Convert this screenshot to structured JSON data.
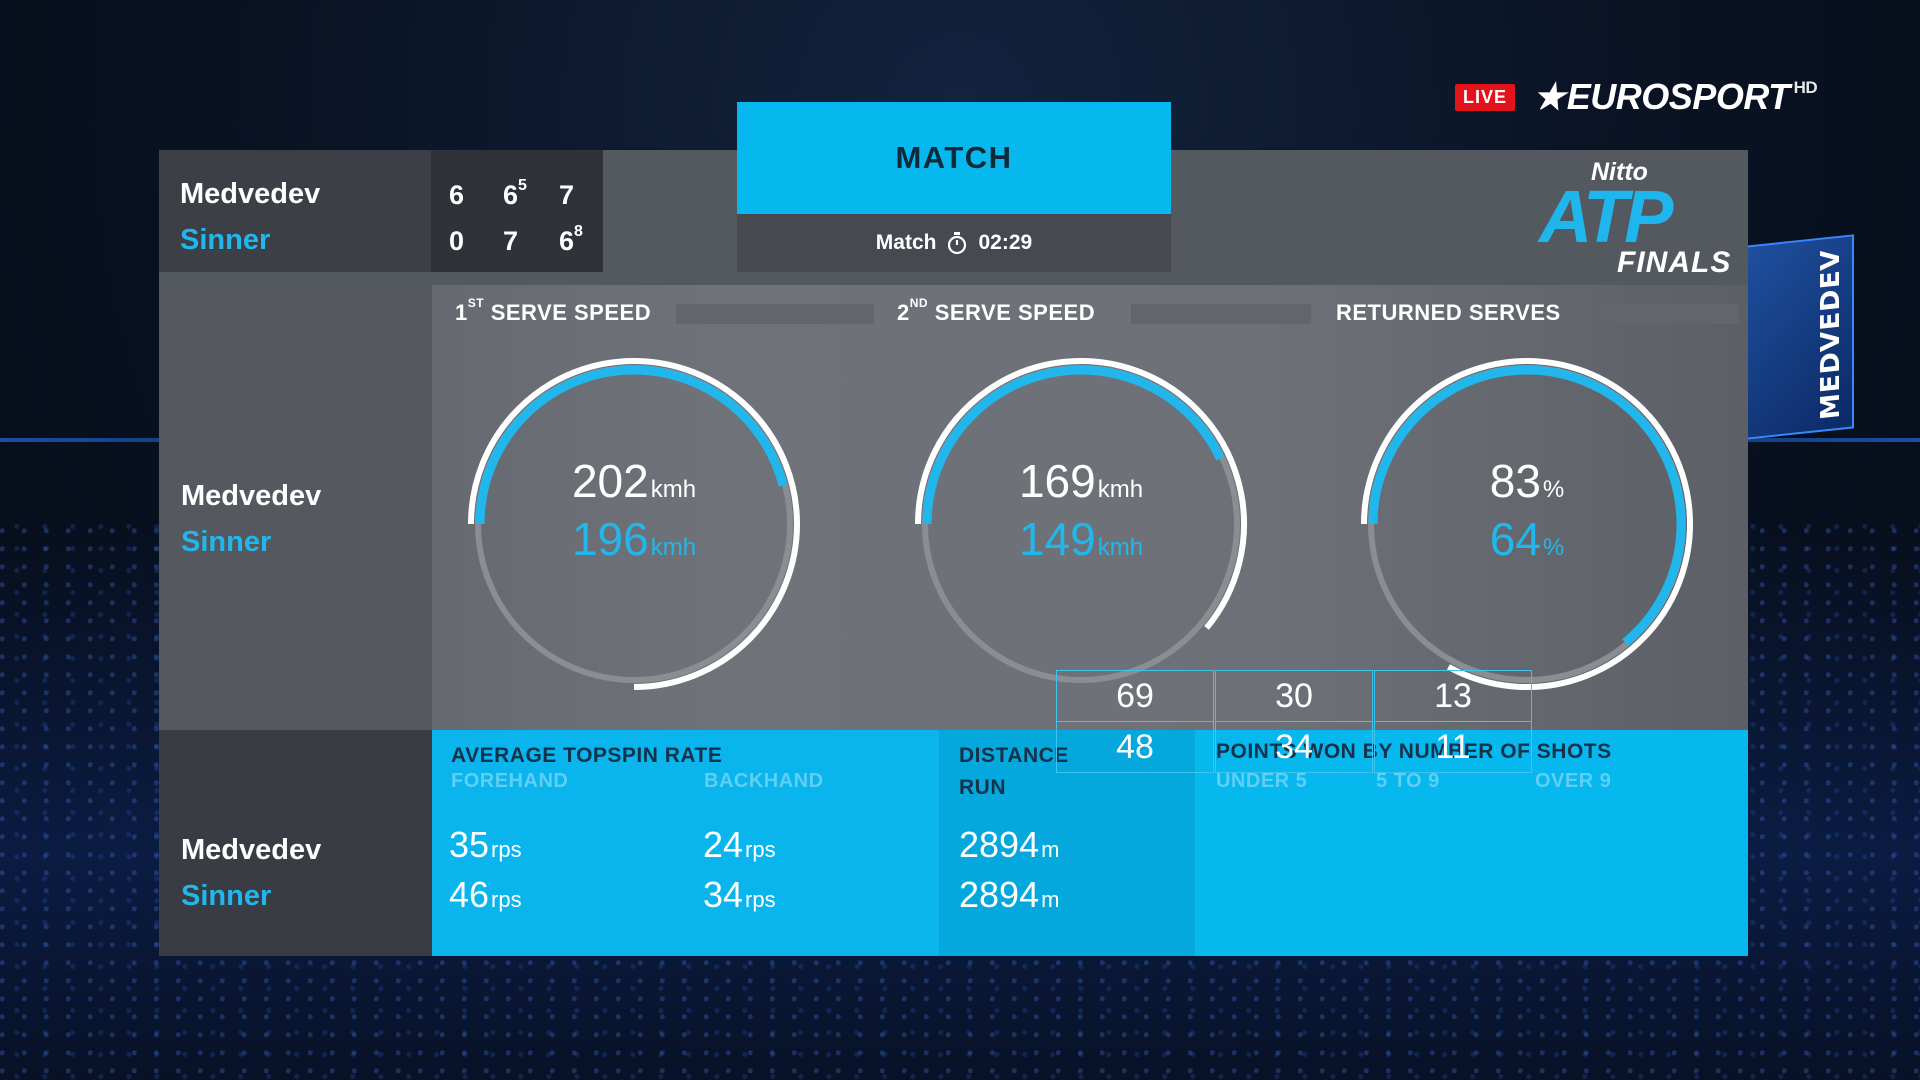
{
  "broadcaster": {
    "live_label": "LIVE",
    "brand": "EUROSPORT",
    "hd_label": "HD"
  },
  "background": {
    "video_screen_text": "MEDVEDEV"
  },
  "tournament": {
    "logo_top": "Nitto",
    "logo_main": "ATP",
    "logo_bottom": "FINALS"
  },
  "players": [
    {
      "name": "Medvedev",
      "sets": [
        "6",
        "6",
        "7"
      ],
      "tiebreaks": [
        "",
        "5",
        ""
      ]
    },
    {
      "name": "Sinner",
      "sets": [
        "0",
        "7",
        "6"
      ],
      "tiebreaks": [
        "",
        "",
        "8"
      ]
    }
  ],
  "match": {
    "tab_label": "MATCH",
    "sub_label": "Match",
    "clock_icon": "stopwatch-icon",
    "duration": "02:29"
  },
  "gauges": [
    {
      "title_prefix": "1",
      "title_sup": "ST",
      "title_rest": " SERVE SPEED",
      "p1_value": "202",
      "p1_unit": "kmh",
      "p2_value": "196",
      "p2_unit": "kmh",
      "p1_fraction": 0.75,
      "p2_fraction": 0.46
    },
    {
      "title_prefix": "2",
      "title_sup": "ND",
      "title_rest": " SERVE SPEED",
      "p1_value": "169",
      "p1_unit": "kmh",
      "p2_value": "149",
      "p2_unit": "kmh",
      "p1_fraction": 0.61,
      "p2_fraction": 0.43
    },
    {
      "title_prefix": "",
      "title_sup": "",
      "title_rest": "RETURNED SERVES",
      "p1_value": "83",
      "p1_unit": "%",
      "p2_value": "64",
      "p2_unit": "%",
      "p1_fraction": 0.83,
      "p2_fraction": 0.64
    }
  ],
  "topspin": {
    "title": "AVERAGE TOPSPIN RATE",
    "forehand_label": "FOREHAND",
    "backhand_label": "BACKHAND",
    "unit": "rps",
    "forehand": [
      "35",
      "46"
    ],
    "backhand": [
      "24",
      "34"
    ]
  },
  "distance": {
    "title_line1": "DISTANCE",
    "title_line2": "RUN",
    "unit": "m",
    "values": [
      "2894",
      "2894"
    ]
  },
  "points_by_shots": {
    "title": "POINTS WON BY NUMBER OF SHOTS",
    "columns": [
      "UNDER 5",
      "5 TO 9",
      "OVER 9"
    ],
    "rows": [
      [
        "69",
        "30",
        "13"
      ],
      [
        "48",
        "34",
        "11"
      ]
    ]
  },
  "colors": {
    "accent": "#07b8ef",
    "player2": "#22b7ec",
    "panel": "#54585f"
  }
}
